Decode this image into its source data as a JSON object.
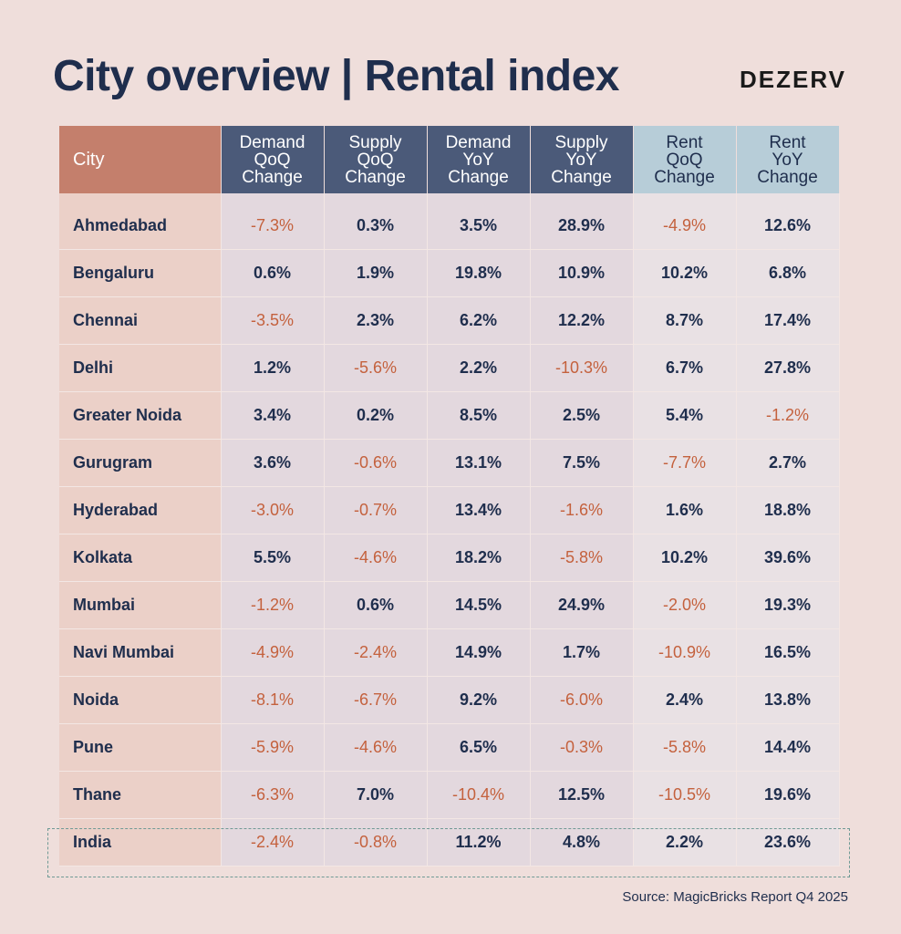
{
  "title": "City overview | Rental index",
  "brand": "DEZERV",
  "source": "Source: MagicBricks Report Q4 2025",
  "colors": {
    "city_header": "#c47f6c",
    "navy_header": "#4b5a79",
    "light_header": "#b7cdd8",
    "negative": "#c4613d",
    "positive": "#1f2e4d",
    "background": "#efdedb"
  },
  "chart_data": {
    "type": "table",
    "columns": [
      "City",
      "Demand QoQ Change",
      "Supply QoQ Change",
      "Demand YoY Change",
      "Supply YoY Change",
      "Rent QoQ Change",
      "Rent YoY Change"
    ],
    "header_lines": [
      [
        "City"
      ],
      [
        "Demand",
        "QoQ",
        "Change"
      ],
      [
        "Supply",
        "QoQ",
        "Change"
      ],
      [
        "Demand",
        "YoY",
        "Change"
      ],
      [
        "Supply",
        "YoY",
        "Change"
      ],
      [
        "Rent",
        "QoQ",
        "Change"
      ],
      [
        "Rent",
        "YoY",
        "Change"
      ]
    ],
    "rows": [
      [
        "Ahmedabad",
        "-7.3%",
        "0.3%",
        "3.5%",
        "28.9%",
        "-4.9%",
        "12.6%"
      ],
      [
        "Bengaluru",
        "0.6%",
        "1.9%",
        "19.8%",
        "10.9%",
        "10.2%",
        "6.8%"
      ],
      [
        "Chennai",
        "-3.5%",
        "2.3%",
        "6.2%",
        "12.2%",
        "8.7%",
        "17.4%"
      ],
      [
        "Delhi",
        "1.2%",
        "-5.6%",
        "2.2%",
        "-10.3%",
        "6.7%",
        "27.8%"
      ],
      [
        "Greater Noida",
        "3.4%",
        "0.2%",
        "8.5%",
        "2.5%",
        "5.4%",
        "-1.2%"
      ],
      [
        "Gurugram",
        "3.6%",
        "-0.6%",
        "13.1%",
        "7.5%",
        "-7.7%",
        "2.7%"
      ],
      [
        "Hyderabad",
        "-3.0%",
        "-0.7%",
        "13.4%",
        "-1.6%",
        "1.6%",
        "18.8%"
      ],
      [
        "Kolkata",
        "5.5%",
        "-4.6%",
        "18.2%",
        "-5.8%",
        "10.2%",
        "39.6%"
      ],
      [
        "Mumbai",
        "-1.2%",
        "0.6%",
        "14.5%",
        "24.9%",
        "-2.0%",
        "19.3%"
      ],
      [
        "Navi Mumbai",
        "-4.9%",
        "-2.4%",
        "14.9%",
        "1.7%",
        "-10.9%",
        "16.5%"
      ],
      [
        "Noida",
        "-8.1%",
        "-6.7%",
        "9.2%",
        "-6.0%",
        "2.4%",
        "13.8%"
      ],
      [
        "Pune",
        "-5.9%",
        "-4.6%",
        "6.5%",
        "-0.3%",
        "-5.8%",
        "14.4%"
      ],
      [
        "Thane",
        "-6.3%",
        "7.0%",
        "-10.4%",
        "12.5%",
        "-10.5%",
        "19.6%"
      ],
      [
        "India",
        "-2.4%",
        "-0.8%",
        "11.2%",
        "4.8%",
        "2.2%",
        "23.6%"
      ]
    ],
    "highlighted_row": "India"
  }
}
